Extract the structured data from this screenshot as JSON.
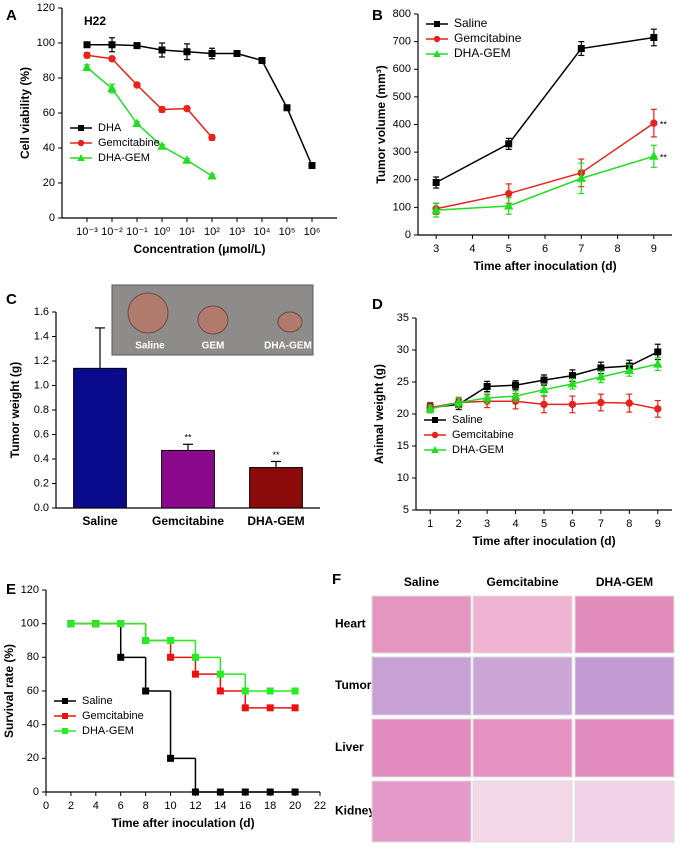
{
  "chart_data": [
    {
      "panel": "A",
      "type": "line",
      "annotation": "H22",
      "xlog": true,
      "xlabel": "Concentration (μmol/L)",
      "ylabel": "Cell viability (%)",
      "xlim": [
        0.0001,
        10000000
      ],
      "xticks": [
        {
          "value": 0.001,
          "label": "10⁻³"
        },
        {
          "value": 0.01,
          "label": "10⁻²"
        },
        {
          "value": 0.1,
          "label": "10⁻¹"
        },
        {
          "value": 1,
          "label": "10⁰"
        },
        {
          "value": 10,
          "label": "10¹"
        },
        {
          "value": 100,
          "label": "10²"
        },
        {
          "value": 1000,
          "label": "10³"
        },
        {
          "value": 10000,
          "label": "10⁴"
        },
        {
          "value": 100000,
          "label": "10⁵"
        },
        {
          "value": 1000000,
          "label": "10⁶"
        }
      ],
      "ylim": [
        0,
        120
      ],
      "yticks": [
        0,
        20,
        40,
        60,
        80,
        100,
        120
      ],
      "legend": "lower left",
      "series": [
        {
          "name": "DHA",
          "color": "#000000",
          "marker": "square",
          "x": [
            0.001,
            0.01,
            0.1,
            1,
            10,
            100,
            1000,
            10000,
            100000,
            1000000
          ],
          "values": [
            99,
            99,
            98.5,
            96,
            95,
            94,
            94,
            90,
            63,
            30
          ],
          "errors": [
            1.5,
            4,
            1.5,
            4,
            4.5,
            3,
            1,
            1,
            1,
            1
          ]
        },
        {
          "name": "Gemcitabine",
          "color": "#e8221c",
          "marker": "circle",
          "x": [
            0.001,
            0.01,
            0.1,
            1,
            10,
            100
          ],
          "values": [
            93,
            91,
            76,
            62,
            62.5,
            46
          ],
          "errors": [
            1.5,
            1,
            1,
            1.5,
            1,
            1.5
          ]
        },
        {
          "name": "DHA-GEM",
          "color": "#22dd22",
          "marker": "triangle",
          "x": [
            0.001,
            0.01,
            0.1,
            1,
            10,
            100
          ],
          "values": [
            86,
            74,
            54,
            41,
            33,
            24
          ],
          "errors": [
            1.5,
            2.5,
            1,
            1,
            1,
            1
          ]
        }
      ]
    },
    {
      "panel": "B",
      "type": "line",
      "xlabel": "Time after inoculation (d)",
      "ylabel": "Tumor volume (mm³)",
      "xlim": [
        2.5,
        9.5
      ],
      "xticks": [
        3,
        4,
        5,
        6,
        7,
        8,
        9
      ],
      "ylim": [
        0,
        800
      ],
      "yticks": [
        0,
        100,
        200,
        300,
        400,
        500,
        600,
        700,
        800
      ],
      "legend": "upper left",
      "x": [
        3,
        5,
        7,
        9
      ],
      "series": [
        {
          "name": "Saline",
          "color": "#000000",
          "marker": "square",
          "values": [
            190,
            330,
            675,
            715
          ],
          "errors": [
            20,
            20,
            25,
            30
          ]
        },
        {
          "name": "Gemcitabine",
          "color": "#e8221c",
          "marker": "circle",
          "values": [
            95,
            150,
            225,
            405
          ],
          "errors": [
            20,
            35,
            50,
            50
          ],
          "significance": [
            null,
            null,
            null,
            "**"
          ]
        },
        {
          "name": "DHA-GEM",
          "color": "#22dd22",
          "marker": "triangle",
          "values": [
            90,
            105,
            205,
            285
          ],
          "errors": [
            25,
            30,
            55,
            40
          ],
          "significance": [
            null,
            null,
            null,
            "**"
          ]
        }
      ]
    },
    {
      "panel": "C",
      "type": "bar",
      "ylabel": "Tumor weight (g)",
      "categories": [
        "Saline",
        "Gemcitabine",
        "DHA-GEM"
      ],
      "values": [
        1.14,
        0.47,
        0.33
      ],
      "errors": [
        0.33,
        0.05,
        0.05
      ],
      "colors": [
        "#0a0a8c",
        "#8b0a8b",
        "#8b0a0a"
      ],
      "significance": [
        null,
        "**",
        "**"
      ],
      "inset_labels": [
        "Saline",
        "GEM",
        "DHA-GEM"
      ],
      "ylim": [
        0,
        1.6
      ],
      "yticks": [
        {
          "value": 0,
          "label": "0.0"
        },
        0.2,
        0.4,
        0.6,
        0.8,
        {
          "value": 1,
          "label": "1.0"
        },
        1.2,
        1.4,
        1.6
      ]
    },
    {
      "panel": "D",
      "type": "line",
      "xlabel": "Time after inoculation (d)",
      "ylabel": "Animal weight (g)",
      "xlim": [
        0.5,
        9.5
      ],
      "xticks": [
        1,
        2,
        3,
        4,
        5,
        6,
        7,
        8,
        9
      ],
      "ylim": [
        5,
        35
      ],
      "yticks": [
        5,
        10,
        15,
        20,
        25,
        30,
        35
      ],
      "legend": "lower left",
      "x": [
        1,
        2,
        3,
        4,
        5,
        6,
        7,
        8,
        9
      ],
      "series": [
        {
          "name": "Saline",
          "color": "#000000",
          "marker": "square",
          "values": [
            21,
            21.5,
            24.3,
            24.5,
            25.3,
            26,
            27.2,
            27.5,
            29.7
          ],
          "errors": [
            0.6,
            0.8,
            0.8,
            0.7,
            0.8,
            0.9,
            0.9,
            0.9,
            1.2
          ]
        },
        {
          "name": "Gemcitabine",
          "color": "#e8221c",
          "marker": "circle",
          "values": [
            21,
            21.8,
            22,
            22,
            21.5,
            21.5,
            21.8,
            21.7,
            20.8
          ],
          "errors": [
            0.8,
            0.8,
            1,
            1.2,
            1.3,
            1.3,
            1.3,
            1.4,
            1.3
          ]
        },
        {
          "name": "DHA-GEM",
          "color": "#22dd22",
          "marker": "triangle",
          "values": [
            20.8,
            21.8,
            22.5,
            22.8,
            23.8,
            24.7,
            25.8,
            26.8,
            27.8
          ],
          "errors": [
            0.6,
            0.7,
            0.8,
            0.8,
            0.9,
            0.8,
            0.9,
            0.9,
            1
          ]
        }
      ]
    },
    {
      "panel": "E",
      "type": "step",
      "xlabel": "Time after inoculation (d)",
      "ylabel": "Survival rate (%)",
      "xlim": [
        0,
        22
      ],
      "xticks": [
        0,
        2,
        4,
        6,
        8,
        10,
        12,
        14,
        16,
        18,
        20,
        22
      ],
      "ylim": [
        0,
        120
      ],
      "yticks": [
        0,
        20,
        40,
        60,
        80,
        100,
        120
      ],
      "legend": "center left",
      "x": [
        2,
        4,
        6,
        8,
        10,
        12,
        14,
        16,
        18,
        20
      ],
      "series": [
        {
          "name": "Saline",
          "color": "#000000",
          "marker": "square",
          "values": [
            100,
            100,
            80,
            60,
            20,
            0,
            0,
            0,
            0,
            0
          ]
        },
        {
          "name": "Gemcitabine",
          "color": "#ee1111",
          "marker": "square",
          "values": [
            100,
            100,
            100,
            90,
            80,
            70,
            60,
            50,
            50,
            50
          ]
        },
        {
          "name": "DHA-GEM",
          "color": "#22ee22",
          "marker": "square",
          "values": [
            100,
            100,
            100,
            90,
            90,
            80,
            70,
            60,
            60,
            60
          ]
        }
      ]
    }
  ],
  "histology": {
    "panel": "F",
    "columns": [
      "Saline",
      "Gemcitabine",
      "DHA-GEM"
    ],
    "rows": [
      "Heart",
      "Tumor",
      "Liver",
      "Kidney"
    ]
  }
}
